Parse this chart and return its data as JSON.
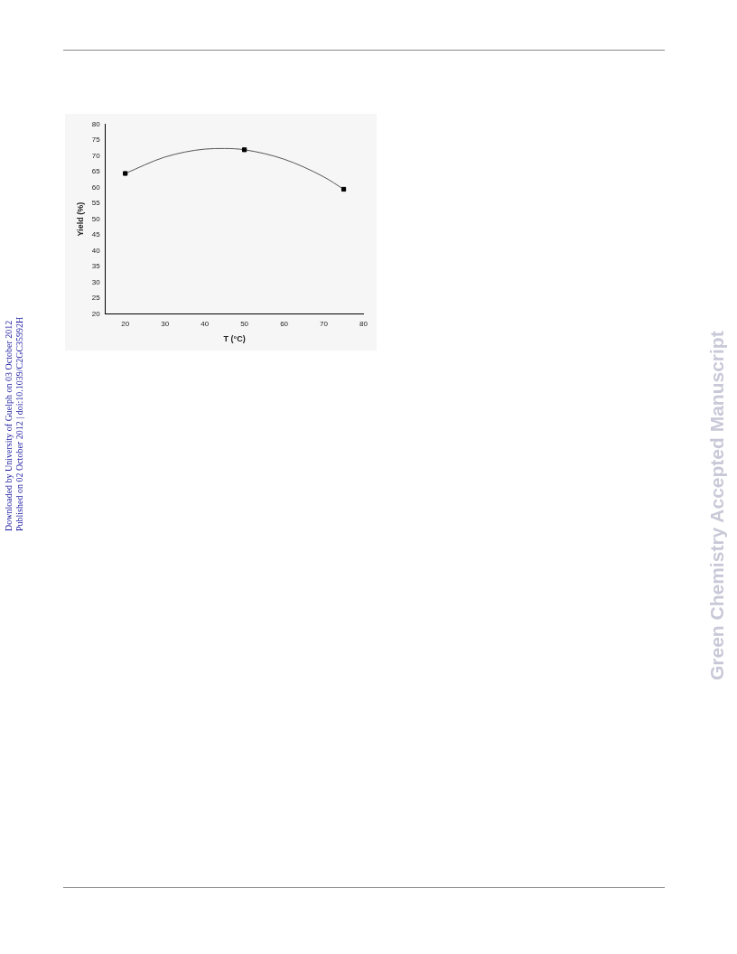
{
  "chart_data": {
    "type": "scatter",
    "xlabel": "T (°C)",
    "ylabel": "Yield (%)",
    "xlim": [
      15,
      80
    ],
    "xticks": [
      20,
      30,
      40,
      50,
      60,
      70,
      80
    ],
    "ylim": [
      20,
      80
    ],
    "yticks": [
      20,
      25,
      30,
      35,
      40,
      45,
      50,
      55,
      60,
      65,
      70,
      75,
      80
    ],
    "grid": false,
    "legend": false,
    "marker": "square",
    "series": [
      {
        "color": "#000000",
        "x": [
          20,
          50,
          75
        ],
        "values": [
          64.5,
          72,
          59.5
        ]
      },
      {
        "type": "line",
        "color": "#555555",
        "marker": "none",
        "line_style": "solid",
        "x": [
          20,
          30,
          40,
          45,
          50,
          60,
          70,
          75
        ],
        "values": [
          64.5,
          69.7,
          72.2,
          72.4,
          72,
          69,
          63.4,
          59.5
        ]
      }
    ],
    "annotations": [
      "Downloaded by University of Guelph on 03 October 2012",
      "Published on 02 October 2012 | doi:10.1039/C2GC35992H",
      "Green Chemistry Accepted Manuscript"
    ]
  }
}
